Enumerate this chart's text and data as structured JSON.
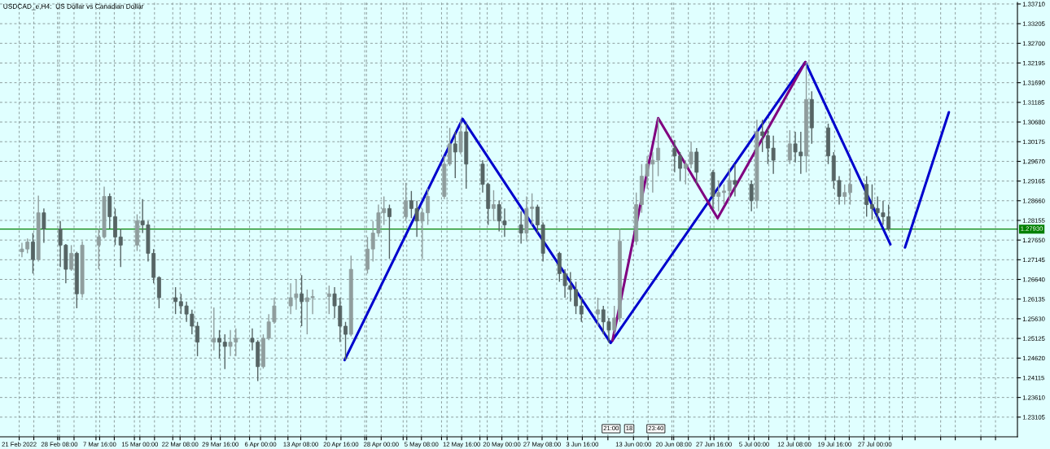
{
  "chart_data": {
    "type": "candlestick",
    "title": "USDCAD_e,H4:  US Dollar vs Canadian Dollar",
    "x": [
      "2022-02-21T12:00",
      "2022-02-22T12:00",
      "2022-02-23T12:00",
      "2022-02-24T12:00",
      "2022-02-25T12:00",
      "2022-02-28T12:00",
      "2022-03-01T12:00",
      "2022-03-02T12:00",
      "2022-03-03T12:00",
      "2022-03-04T12:00",
      "2022-03-07T12:00",
      "2022-03-08T12:00",
      "2022-03-09T12:00",
      "2022-03-10T12:00",
      "2022-03-11T12:00",
      "2022-03-14T12:00",
      "2022-03-15T12:00",
      "2022-03-16T12:00",
      "2022-03-17T12:00",
      "2022-03-18T12:00",
      "2022-03-21T12:00",
      "2022-03-22T12:00",
      "2022-03-23T12:00",
      "2022-03-24T12:00",
      "2022-03-25T12:00",
      "2022-03-28T12:00",
      "2022-03-29T12:00",
      "2022-03-30T12:00",
      "2022-03-31T12:00",
      "2022-04-01T12:00",
      "2022-04-04T12:00",
      "2022-04-05T12:00",
      "2022-04-06T12:00",
      "2022-04-07T12:00",
      "2022-04-08T12:00",
      "2022-04-11T12:00",
      "2022-04-12T12:00",
      "2022-04-13T12:00",
      "2022-04-14T12:00",
      "2022-04-15T12:00",
      "2022-04-18T12:00",
      "2022-04-19T12:00",
      "2022-04-20T12:00",
      "2022-04-21T12:00",
      "2022-04-22T12:00",
      "2022-04-25T12:00",
      "2022-04-26T12:00",
      "2022-04-27T12:00",
      "2022-04-28T12:00",
      "2022-04-29T12:00",
      "2022-05-02T12:00",
      "2022-05-03T12:00",
      "2022-05-04T12:00",
      "2022-05-05T12:00",
      "2022-05-06T12:00",
      "2022-05-09T12:00",
      "2022-05-10T12:00",
      "2022-05-11T12:00",
      "2022-05-12T12:00",
      "2022-05-13T12:00",
      "2022-05-16T12:00",
      "2022-05-17T12:00",
      "2022-05-18T12:00",
      "2022-05-19T12:00",
      "2022-05-20T12:00",
      "2022-05-23T12:00",
      "2022-05-24T12:00",
      "2022-05-25T12:00",
      "2022-05-26T12:00",
      "2022-05-27T12:00",
      "2022-05-30T12:00",
      "2022-05-31T12:00",
      "2022-06-01T12:00",
      "2022-06-02T12:00",
      "2022-06-03T12:00",
      "2022-06-06T12:00",
      "2022-06-07T12:00",
      "2022-06-08T12:00",
      "2022-06-09T12:00",
      "2022-06-10T12:00",
      "2022-06-13T12:00",
      "2022-06-14T12:00",
      "2022-06-15T12:00",
      "2022-06-16T12:00",
      "2022-06-17T12:00",
      "2022-06-20T12:00",
      "2022-06-21T12:00",
      "2022-06-22T12:00",
      "2022-06-23T12:00",
      "2022-06-24T12:00",
      "2022-06-27T12:00",
      "2022-06-28T12:00",
      "2022-06-29T12:00",
      "2022-06-30T12:00",
      "2022-07-01T12:00",
      "2022-07-04T12:00",
      "2022-07-05T12:00",
      "2022-07-06T12:00",
      "2022-07-07T12:00",
      "2022-07-08T12:00",
      "2022-07-11T12:00",
      "2022-07-12T12:00",
      "2022-07-13T12:00",
      "2022-07-14T12:00",
      "2022-07-15T12:00",
      "2022-07-18T12:00",
      "2022-07-19T12:00",
      "2022-07-20T12:00",
      "2022-07-21T12:00",
      "2022-07-22T12:00",
      "2022-07-25T12:00",
      "2022-07-26T12:00",
      "2022-07-27T12:00",
      "2022-07-28T12:00",
      "2022-07-29T12:00"
    ],
    "ohlc": [
      [
        1.2735,
        1.2758,
        1.2721,
        1.2742
      ],
      [
        1.2742,
        1.2769,
        1.2731,
        1.276
      ],
      [
        1.276,
        1.2783,
        1.2679,
        1.2715
      ],
      [
        1.2715,
        1.2879,
        1.271,
        1.2835
      ],
      [
        1.2835,
        1.2846,
        1.2758,
        1.2794
      ],
      [
        1.2794,
        1.2814,
        1.2696,
        1.2752
      ],
      [
        1.2752,
        1.2755,
        1.2654,
        1.269
      ],
      [
        1.269,
        1.2752,
        1.2686,
        1.2731
      ],
      [
        1.2731,
        1.2735,
        1.259,
        1.2627
      ],
      [
        1.2627,
        1.2762,
        1.2617,
        1.2752
      ],
      [
        1.2752,
        1.2794,
        1.269,
        1.2773
      ],
      [
        1.2773,
        1.2902,
        1.2769,
        1.2877
      ],
      [
        1.2877,
        1.2885,
        1.2794,
        1.2825
      ],
      [
        1.2825,
        1.2846,
        1.2752,
        1.2773
      ],
      [
        1.2773,
        1.2794,
        1.2696,
        1.2752
      ],
      [
        1.2752,
        1.2831,
        1.2737,
        1.2814
      ],
      [
        1.2814,
        1.287,
        1.2783,
        1.2804
      ],
      [
        1.2804,
        1.2814,
        1.271,
        1.2731
      ],
      [
        1.2731,
        1.2742,
        1.2654,
        1.2669
      ],
      [
        1.2669,
        1.2672,
        1.259,
        1.2617
      ],
      [
        1.2617,
        1.2644,
        1.2575,
        1.2607
      ],
      [
        1.2607,
        1.2627,
        1.2575,
        1.2596
      ],
      [
        1.2596,
        1.2607,
        1.2555,
        1.2575
      ],
      [
        1.2575,
        1.2586,
        1.2523,
        1.2544
      ],
      [
        1.2544,
        1.2555,
        1.2467,
        1.2503
      ],
      [
        1.2503,
        1.2592,
        1.2482,
        1.2513
      ],
      [
        1.2513,
        1.2534,
        1.2461,
        1.2503
      ],
      [
        1.2503,
        1.2523,
        1.2434,
        1.2492
      ],
      [
        1.2492,
        1.2534,
        1.2467,
        1.2503
      ],
      [
        1.2503,
        1.2538,
        1.2467,
        1.2513
      ],
      [
        1.2513,
        1.2538,
        1.2482,
        1.2503
      ],
      [
        1.2503,
        1.2508,
        1.2403,
        1.244
      ],
      [
        1.244,
        1.2523,
        1.2435,
        1.2513
      ],
      [
        1.2513,
        1.2575,
        1.2508,
        1.2555
      ],
      [
        1.2555,
        1.2617,
        1.255,
        1.2596
      ],
      [
        1.2596,
        1.2654,
        1.2575,
        1.2617
      ],
      [
        1.2617,
        1.2665,
        1.2586,
        1.2627
      ],
      [
        1.2627,
        1.2675,
        1.2544,
        1.2607
      ],
      [
        1.2607,
        1.2638,
        1.2523,
        1.2617
      ],
      [
        1.2617,
        1.2638,
        1.2575,
        1.262
      ],
      [
        1.262,
        1.2648,
        1.2575,
        1.2627
      ],
      [
        1.2627,
        1.2644,
        1.2565,
        1.2596
      ],
      [
        1.2596,
        1.2617,
        1.2503,
        1.2544
      ],
      [
        1.2544,
        1.2555,
        1.2457,
        1.2523
      ],
      [
        1.2523,
        1.2725,
        1.2518,
        1.269
      ],
      [
        1.269,
        1.2773,
        1.2679,
        1.2742
      ],
      [
        1.2742,
        1.2814,
        1.271,
        1.2783
      ],
      [
        1.2783,
        1.2856,
        1.2773,
        1.2835
      ],
      [
        1.2835,
        1.2877,
        1.2804,
        1.2846
      ],
      [
        1.2846,
        1.2856,
        1.2717,
        1.2825
      ],
      [
        1.2825,
        1.2912,
        1.2814,
        1.2866
      ],
      [
        1.2866,
        1.2891,
        1.2821,
        1.2846
      ],
      [
        1.2846,
        1.2866,
        1.2773,
        1.2814
      ],
      [
        1.2814,
        1.2846,
        1.2717,
        1.2835
      ],
      [
        1.2835,
        1.2897,
        1.2804,
        1.2877
      ],
      [
        1.2877,
        1.2981,
        1.287,
        1.296
      ],
      [
        1.296,
        1.3053,
        1.2955,
        1.3012
      ],
      [
        1.3012,
        1.3043,
        1.2924,
        1.2991
      ],
      [
        1.2991,
        1.3076,
        1.2985,
        1.3043
      ],
      [
        1.3043,
        1.3064,
        1.2897,
        1.296
      ],
      [
        1.296,
        1.297,
        1.2887,
        1.2908
      ],
      [
        1.2908,
        1.2912,
        1.2804,
        1.2846
      ],
      [
        1.2846,
        1.2893,
        1.2814,
        1.2856
      ],
      [
        1.2856,
        1.2866,
        1.2787,
        1.2814
      ],
      [
        1.2814,
        1.2846,
        1.2773,
        1.2804
      ],
      [
        1.2804,
        1.2839,
        1.2756,
        1.2783
      ],
      [
        1.2783,
        1.2877,
        1.2762,
        1.2846
      ],
      [
        1.2846,
        1.2885,
        1.2804,
        1.285
      ],
      [
        1.285,
        1.2856,
        1.2783,
        1.2804
      ],
      [
        1.2804,
        1.281,
        1.271,
        1.2731
      ],
      [
        1.2731,
        1.2735,
        1.2658,
        1.2679
      ],
      [
        1.2679,
        1.269,
        1.2617,
        1.2648
      ],
      [
        1.2648,
        1.2683,
        1.2607,
        1.2638
      ],
      [
        1.2638,
        1.2658,
        1.2575,
        1.2596
      ],
      [
        1.2596,
        1.2617,
        1.2555,
        1.2575
      ],
      [
        1.2575,
        1.2617,
        1.2544,
        1.2586
      ],
      [
        1.2586,
        1.2596,
        1.2523,
        1.2555
      ],
      [
        1.2555,
        1.2565,
        1.2501,
        1.2534
      ],
      [
        1.2534,
        1.2596,
        1.2523,
        1.2565
      ],
      [
        1.2565,
        1.2794,
        1.2555,
        1.2762
      ],
      [
        1.2762,
        1.2887,
        1.2752,
        1.2856
      ],
      [
        1.2856,
        1.296,
        1.2835,
        1.2929
      ],
      [
        1.2929,
        1.2981,
        1.2897,
        1.296
      ],
      [
        1.296,
        1.2991,
        1.2887,
        1.297
      ],
      [
        1.297,
        1.3078,
        1.2929,
        1.3001
      ],
      [
        1.3001,
        1.3022,
        1.2939,
        1.2981
      ],
      [
        1.2981,
        1.2991,
        1.2918,
        1.2949
      ],
      [
        1.2949,
        1.297,
        1.2908,
        1.296
      ],
      [
        1.296,
        1.3018,
        1.2949,
        1.2991
      ],
      [
        1.2991,
        1.3001,
        1.2908,
        1.2939
      ],
      [
        1.2939,
        1.2945,
        1.2846,
        1.2877
      ],
      [
        1.2877,
        1.2918,
        1.2839,
        1.2887
      ],
      [
        1.2887,
        1.2908,
        1.2856,
        1.2891
      ],
      [
        1.2891,
        1.2949,
        1.2866,
        1.2918
      ],
      [
        1.2918,
        1.296,
        1.2877,
        1.2908
      ],
      [
        1.2908,
        1.2918,
        1.2839,
        1.2866
      ],
      [
        1.2866,
        1.3074,
        1.2846,
        1.3043
      ],
      [
        1.3043,
        1.3074,
        1.2991,
        1.3033
      ],
      [
        1.3033,
        1.3053,
        1.296,
        1.3001
      ],
      [
        1.3001,
        1.3033,
        1.2935,
        1.297
      ],
      [
        1.297,
        1.3047,
        1.296,
        1.3012
      ],
      [
        1.3012,
        1.3043,
        1.2964,
        1.2991
      ],
      [
        1.2991,
        1.3043,
        1.2935,
        1.2981
      ],
      [
        1.2981,
        1.3222,
        1.2939,
        1.3126
      ],
      [
        1.3126,
        1.3147,
        1.3012,
        1.3053
      ],
      [
        1.3053,
        1.3064,
        1.296,
        1.2981
      ],
      [
        1.2981,
        1.2991,
        1.2897,
        1.2918
      ],
      [
        1.2918,
        1.2929,
        1.2856,
        1.2877
      ],
      [
        1.2877,
        1.2908,
        1.2856,
        1.2887
      ],
      [
        1.2887,
        1.2949,
        1.2856,
        1.2908
      ],
      [
        1.2908,
        1.2929,
        1.2825,
        1.2856
      ],
      [
        1.2856,
        1.2908,
        1.2818,
        1.2846
      ],
      [
        1.2846,
        1.2877,
        1.2814,
        1.2835
      ],
      [
        1.2835,
        1.2866,
        1.2804,
        1.2825
      ],
      [
        1.2825,
        1.2856,
        1.2789,
        1.2793
      ]
    ],
    "colors": [
      "#8f9d9d",
      "#8f9d9d",
      "#566464",
      "#8f9d9d",
      "#566464",
      "#566464",
      "#566464",
      "#8f9d9d",
      "#566464",
      "#8f9d9d",
      "#8f9d9d",
      "#8f9d9d",
      "#566464",
      "#566464",
      "#566464",
      "#8f9d9d",
      "#566464",
      "#566464",
      "#566464",
      "#566464",
      "#566464",
      "#566464",
      "#566464",
      "#566464",
      "#566464",
      "#8f9d9d",
      "#566464",
      "#566464",
      "#8f9d9d",
      "#8f9d9d",
      "#566464",
      "#566464",
      "#8f9d9d",
      "#8f9d9d",
      "#8f9d9d",
      "#8f9d9d",
      "#8f9d9d",
      "#566464",
      "#8f9d9d",
      "#8f9d9d",
      "#8f9d9d",
      "#566464",
      "#566464",
      "#566464",
      "#8f9d9d",
      "#8f9d9d",
      "#8f9d9d",
      "#8f9d9d",
      "#8f9d9d",
      "#566464",
      "#8f9d9d",
      "#566464",
      "#566464",
      "#8f9d9d",
      "#8f9d9d",
      "#8f9d9d",
      "#8f9d9d",
      "#566464",
      "#8f9d9d",
      "#566464",
      "#566464",
      "#566464",
      "#8f9d9d",
      "#566464",
      "#566464",
      "#566464",
      "#8f9d9d",
      "#8f9d9d",
      "#566464",
      "#566464",
      "#566464",
      "#566464",
      "#566464",
      "#566464",
      "#566464",
      "#8f9d9d",
      "#566464",
      "#566464",
      "#8f9d9d",
      "#8f9d9d",
      "#8f9d9d",
      "#8f9d9d",
      "#8f9d9d",
      "#8f9d9d",
      "#8f9d9d",
      "#566464",
      "#566464",
      "#8f9d9d",
      "#8f9d9d",
      "#566464",
      "#566464",
      "#8f9d9d",
      "#8f9d9d",
      "#8f9d9d",
      "#566464",
      "#566464",
      "#8f9d9d",
      "#566464",
      "#566464",
      "#566464",
      "#8f9d9d",
      "#566464",
      "#566464",
      "#8f9d9d",
      "#566464",
      "#566464",
      "#566464",
      "#566464",
      "#8f9d9d",
      "#8f9d9d",
      "#566464",
      "#566464",
      "#566464",
      "#566464",
      "#566464"
    ],
    "series": [
      {
        "type": "line",
        "color": "#0000cd",
        "x": [
          "2022-04-21T08:00",
          "2022-05-12T20:00",
          "2022-06-08T20:00",
          "2022-07-14T08:00",
          "2022-07-29T20:00"
        ],
        "values": [
          1.2457,
          1.3076,
          1.2501,
          1.3222,
          1.2754
        ]
      },
      {
        "type": "line",
        "color": "#0000cd",
        "x": [
          "2022-08-01T12:00",
          "2022-08-09T12:00"
        ],
        "values": [
          1.2746,
          1.3093
        ]
      },
      {
        "type": "line",
        "color": "#800080",
        "x": [
          "2022-06-09T04:00",
          "2022-06-17T12:00",
          "2022-06-28T08:00",
          "2022-07-14T08:00"
        ],
        "values": [
          1.2507,
          1.3078,
          1.2821,
          1.3222
        ]
      }
    ],
    "xlim": [
      "2022-02-17T12:00",
      "2022-08-22T00:00"
    ],
    "xticks": [
      {
        "value": "2022-02-21T00:00",
        "label": "21 Feb 2022"
      },
      {
        "value": "2022-02-23T16:00",
        "label": null
      },
      {
        "value": "2022-02-28T00:00",
        "label": null
      },
      {
        "value": "2022-02-28T08:00",
        "label": "28 Feb 08:00"
      },
      {
        "value": "2022-03-03T00:00",
        "label": null
      },
      {
        "value": "2022-03-07T00:00",
        "label": null
      },
      {
        "value": "2022-03-07T16:00",
        "label": "7 Mar 16:00"
      },
      {
        "value": "2022-03-10T08:00",
        "label": null
      },
      {
        "value": "2022-03-14T00:00",
        "label": null
      },
      {
        "value": "2022-03-15T00:00",
        "label": "15 Mar 00:00"
      },
      {
        "value": "2022-03-17T16:00",
        "label": null
      },
      {
        "value": "2022-03-21T00:00",
        "label": null
      },
      {
        "value": "2022-03-22T08:00",
        "label": "22 Mar 08:00"
      },
      {
        "value": "2022-03-25T00:00",
        "label": null
      },
      {
        "value": "2022-03-28T00:00",
        "label": null
      },
      {
        "value": "2022-03-29T16:00",
        "label": "29 Mar 16:00"
      },
      {
        "value": "2022-04-01T08:00",
        "label": null
      },
      {
        "value": "2022-04-04T00:00",
        "label": null
      },
      {
        "value": "2022-04-06T00:00",
        "label": "6 Apr 00:00"
      },
      {
        "value": "2022-04-08T16:00",
        "label": null
      },
      {
        "value": "2022-04-11T00:00",
        "label": null
      },
      {
        "value": "2022-04-13T08:00",
        "label": "13 Apr 08:00"
      },
      {
        "value": "2022-04-18T00:00",
        "label": null
      },
      {
        "value": "2022-04-20T16:00",
        "label": "20 Apr 16:00"
      },
      {
        "value": "2022-04-25T00:00",
        "label": null
      },
      {
        "value": "2022-04-25T08:00",
        "label": null
      },
      {
        "value": "2022-04-28T00:00",
        "label": "28 Apr 00:00"
      },
      {
        "value": "2022-05-02T00:00",
        "label": null
      },
      {
        "value": "2022-05-02T16:00",
        "label": null
      },
      {
        "value": "2022-05-05T08:00",
        "label": "5 May 08:00"
      },
      {
        "value": "2022-05-09T00:00",
        "label": null
      },
      {
        "value": "2022-05-10T00:00",
        "label": null
      },
      {
        "value": "2022-05-12T16:00",
        "label": "12 May 16:00"
      },
      {
        "value": "2022-05-16T00:00",
        "label": null
      },
      {
        "value": "2022-05-17T08:00",
        "label": null
      },
      {
        "value": "2022-05-20T00:00",
        "label": "20 May 00:00"
      },
      {
        "value": "2022-05-23T00:00",
        "label": null
      },
      {
        "value": "2022-05-24T16:00",
        "label": null
      },
      {
        "value": "2022-05-27T08:00",
        "label": "27 May 08:00"
      },
      {
        "value": "2022-05-30T00:00",
        "label": null
      },
      {
        "value": "2022-06-01T00:00",
        "label": null
      },
      {
        "value": "2022-06-03T16:00",
        "label": "3 Jun 16:00"
      },
      {
        "value": "2022-06-06T00:00",
        "label": null
      },
      {
        "value": "2022-06-08T08:00",
        "label": null
      },
      {
        "value": "2022-06-13T00:00",
        "label": "13 Jun 00:00"
      },
      {
        "value": "2022-06-15T16:00",
        "label": null
      },
      {
        "value": "2022-06-20T00:00",
        "label": null
      },
      {
        "value": "2022-06-20T08:00",
        "label": "20 Jun 08:00"
      },
      {
        "value": "2022-06-23T00:00",
        "label": null
      },
      {
        "value": "2022-06-27T00:00",
        "label": null
      },
      {
        "value": "2022-06-27T16:00",
        "label": "27 Jun 16:00"
      },
      {
        "value": "2022-06-30T08:00",
        "label": null
      },
      {
        "value": "2022-07-04T00:00",
        "label": null
      },
      {
        "value": "2022-07-05T00:00",
        "label": "5 Jul 00:00"
      },
      {
        "value": "2022-07-07T16:00",
        "label": null
      },
      {
        "value": "2022-07-11T00:00",
        "label": null
      },
      {
        "value": "2022-07-12T08:00",
        "label": "12 Jul 08:00"
      },
      {
        "value": "2022-07-15T00:00",
        "label": null
      },
      {
        "value": "2022-07-18T00:00",
        "label": null
      },
      {
        "value": "2022-07-19T16:00",
        "label": "19 Jul 16:00"
      },
      {
        "value": "2022-07-22T08:00",
        "label": null
      },
      {
        "value": "2022-07-25T00:00",
        "label": null
      },
      {
        "value": "2022-07-27T00:00",
        "label": "27 Jul 00:00"
      },
      {
        "value": "2022-07-29T16:00",
        "label": null
      },
      {
        "value": "2022-08-01T00:00",
        "label": null
      },
      {
        "value": "2022-08-03T08:00",
        "label": null
      },
      {
        "value": "2022-08-08T00:00",
        "label": null
      },
      {
        "value": "2022-08-10T16:00",
        "label": null
      },
      {
        "value": "2022-08-15T08:00",
        "label": null
      },
      {
        "value": "2022-08-18T00:00",
        "label": null
      }
    ],
    "ylim": [
      1.226,
      1.3375
    ],
    "yticks": [
      1.23105,
      {
        "value": 1.2361,
        "label": "1.23610"
      },
      1.24115,
      {
        "value": 1.2462,
        "label": "1.24620"
      },
      1.25125,
      {
        "value": 1.2563,
        "label": "1.25630"
      },
      1.26135,
      {
        "value": 1.2664,
        "label": "1.26640"
      },
      1.27145,
      {
        "value": 1.2765,
        "label": "1.27650"
      },
      1.28155,
      {
        "value": 1.2866,
        "label": "1.28660"
      },
      1.29165,
      {
        "value": 1.2967,
        "label": "1.29670"
      },
      1.30175,
      {
        "value": 1.3068,
        "label": "1.30680"
      },
      1.31185,
      {
        "value": 1.3169,
        "label": "1.31690"
      },
      1.32195,
      {
        "value": 1.327,
        "label": "1.32700"
      },
      1.33205,
      {
        "value": 1.3371,
        "label": "1.33710"
      }
    ],
    "grid": true,
    "ref_lines": [
      {
        "axis": "y",
        "value": 1.2793,
        "label": "1.27930",
        "color": "#008000"
      }
    ],
    "annotations": [
      "21:00",
      "18",
      "23:40"
    ]
  }
}
